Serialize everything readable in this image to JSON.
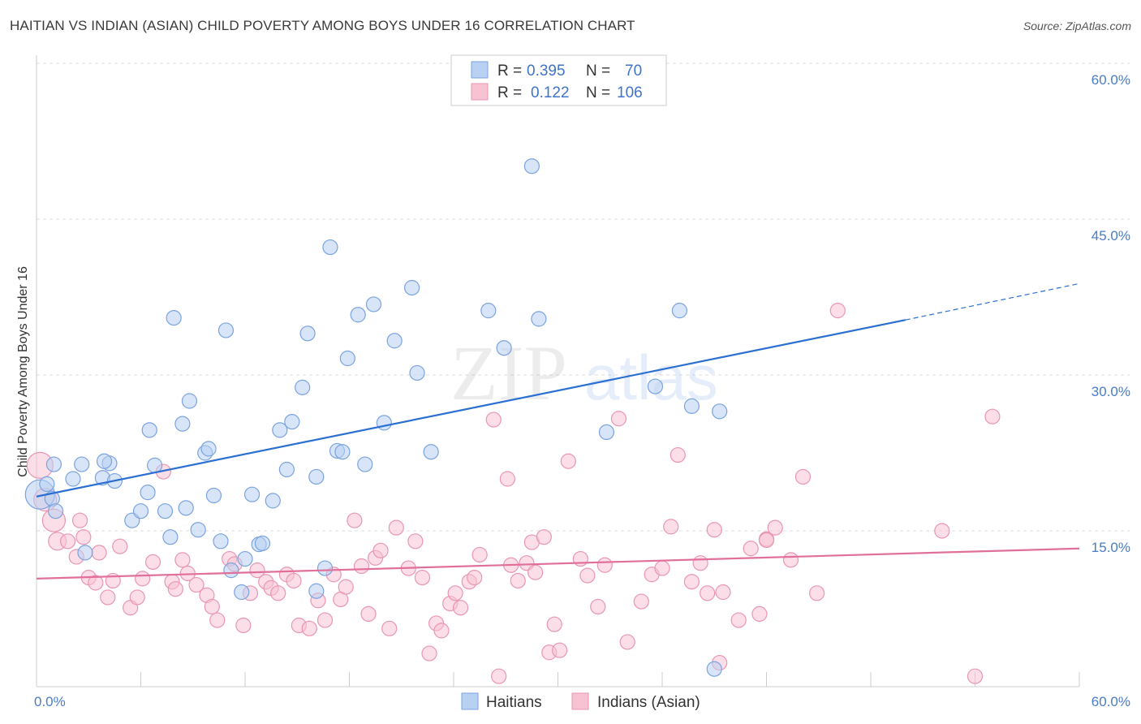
{
  "header": {
    "title": "HAITIAN VS INDIAN (ASIAN) CHILD POVERTY AMONG BOYS UNDER 16 CORRELATION CHART",
    "source": "Source: ZipAtlas.com"
  },
  "watermark": {
    "zip": "ZIP",
    "atlas": "atlas"
  },
  "legend": {
    "r_label": "R =",
    "n_label": "N =",
    "haitians": {
      "r": "0.395",
      "n": "70"
    },
    "indians": {
      "r": "0.122",
      "n": "106"
    }
  },
  "colors": {
    "haitians_fill": "#b8d0f2",
    "haitians_stroke": "#7aa3e0",
    "haitians_line": "#2a6fd1",
    "indians_fill": "#f7c3d3",
    "indians_stroke": "#e996b2",
    "indians_line": "#e0709a",
    "grid": "#dddddd",
    "tick_text": "#4a7cc7"
  },
  "chart_data": {
    "type": "scatter",
    "title": "HAITIAN VS INDIAN (ASIAN) CHILD POVERTY AMONG BOYS UNDER 16 CORRELATION CHART",
    "xlabel": "",
    "ylabel": "Child Poverty Among Boys Under 16",
    "xlim": [
      0,
      60
    ],
    "ylim": [
      0,
      60
    ],
    "x_tick_labels": [
      "0.0%",
      "60.0%"
    ],
    "y_ticks": [
      15,
      30,
      45,
      60
    ],
    "y_tick_labels": [
      "15.0%",
      "30.0%",
      "45.0%",
      "60.0%"
    ],
    "grid": "horizontal dashed",
    "legend_position": "top-center",
    "series": [
      {
        "name": "Haitians",
        "r": 0.395,
        "n": 70,
        "trend": {
          "x0": 0,
          "y0": 18.3,
          "x1": 50,
          "y1": 35.3,
          "dashed_to_x": 60,
          "dashed_to_y": 38.8
        },
        "points": [
          [
            0.2,
            18.5,
            18
          ],
          [
            0.6,
            19.5,
            9
          ],
          [
            1.0,
            21.4,
            9
          ],
          [
            0.9,
            18.1,
            9
          ],
          [
            1.1,
            16.9,
            9
          ],
          [
            2.1,
            20.0,
            9
          ],
          [
            2.6,
            21.4,
            9
          ],
          [
            2.8,
            12.9,
            9
          ],
          [
            3.8,
            20.1,
            9
          ],
          [
            4.2,
            21.5,
            9
          ],
          [
            3.9,
            21.7,
            9
          ],
          [
            4.5,
            19.8,
            9
          ],
          [
            5.5,
            16.0,
            9
          ],
          [
            6.0,
            16.9,
            9
          ],
          [
            6.4,
            18.7,
            9
          ],
          [
            6.5,
            24.7,
            9
          ],
          [
            6.8,
            21.3,
            9
          ],
          [
            7.4,
            16.9,
            9
          ],
          [
            7.7,
            14.4,
            9
          ],
          [
            7.9,
            35.5,
            9
          ],
          [
            8.4,
            25.3,
            9
          ],
          [
            8.6,
            17.2,
            9
          ],
          [
            8.8,
            27.5,
            9
          ],
          [
            9.3,
            15.1,
            9
          ],
          [
            9.7,
            22.5,
            9
          ],
          [
            9.9,
            22.9,
            9
          ],
          [
            10.2,
            18.4,
            9
          ],
          [
            10.6,
            14.0,
            9
          ],
          [
            10.9,
            34.3,
            9
          ],
          [
            11.2,
            11.2,
            9
          ],
          [
            11.8,
            9.1,
            9
          ],
          [
            12.0,
            12.3,
            9
          ],
          [
            12.4,
            18.5,
            9
          ],
          [
            12.8,
            13.7,
            9
          ],
          [
            13.0,
            13.8,
            9
          ],
          [
            13.6,
            17.9,
            9
          ],
          [
            14.0,
            24.7,
            9
          ],
          [
            14.4,
            20.9,
            9
          ],
          [
            14.7,
            25.5,
            9
          ],
          [
            15.3,
            28.8,
            9
          ],
          [
            15.6,
            34.0,
            9
          ],
          [
            16.1,
            20.2,
            9
          ],
          [
            16.1,
            9.2,
            9
          ],
          [
            16.6,
            11.4,
            9
          ],
          [
            16.9,
            42.3,
            9
          ],
          [
            17.3,
            22.7,
            9
          ],
          [
            17.6,
            22.6,
            9
          ],
          [
            17.9,
            31.6,
            9
          ],
          [
            18.5,
            35.8,
            9
          ],
          [
            18.9,
            21.4,
            9
          ],
          [
            19.4,
            36.8,
            9
          ],
          [
            20.0,
            25.4,
            9
          ],
          [
            20.6,
            33.3,
            9
          ],
          [
            21.6,
            38.4,
            9
          ],
          [
            21.9,
            30.2,
            9
          ],
          [
            22.7,
            22.6,
            9
          ],
          [
            26.0,
            36.2,
            9
          ],
          [
            26.9,
            32.6,
            9
          ],
          [
            28.5,
            50.1,
            9
          ],
          [
            28.9,
            35.4,
            9
          ],
          [
            32.8,
            24.5,
            9
          ],
          [
            35.6,
            28.9,
            9
          ],
          [
            37.0,
            36.2,
            9
          ],
          [
            37.7,
            27.0,
            9
          ],
          [
            39.3,
            26.5,
            9
          ],
          [
            39.0,
            1.7,
            9
          ]
        ]
      },
      {
        "name": "Indians (Asian)",
        "r": 0.122,
        "n": 106,
        "trend": {
          "x0": 0,
          "y0": 10.4,
          "x1": 60,
          "y1": 13.3
        },
        "points": [
          [
            0.2,
            21.3,
            16
          ],
          [
            0.5,
            18.0,
            14
          ],
          [
            1.0,
            16.0,
            14
          ],
          [
            1.2,
            14.0,
            11
          ],
          [
            1.8,
            14.0,
            9
          ],
          [
            2.3,
            12.5,
            9
          ],
          [
            2.5,
            16.0,
            9
          ],
          [
            2.7,
            14.4,
            9
          ],
          [
            3.0,
            10.5,
            9
          ],
          [
            3.4,
            10.0,
            9
          ],
          [
            3.6,
            12.9,
            9
          ],
          [
            4.1,
            8.6,
            9
          ],
          [
            4.4,
            10.2,
            9
          ],
          [
            4.8,
            13.5,
            9
          ],
          [
            5.4,
            7.6,
            9
          ],
          [
            5.8,
            8.6,
            9
          ],
          [
            6.1,
            10.4,
            9
          ],
          [
            6.7,
            12.0,
            9
          ],
          [
            7.3,
            20.7,
            9
          ],
          [
            7.8,
            10.1,
            9
          ],
          [
            8.0,
            9.4,
            9
          ],
          [
            8.4,
            12.2,
            9
          ],
          [
            8.7,
            10.9,
            9
          ],
          [
            9.2,
            9.8,
            9
          ],
          [
            9.8,
            8.8,
            9
          ],
          [
            10.1,
            7.7,
            9
          ],
          [
            10.4,
            6.4,
            9
          ],
          [
            11.1,
            12.3,
            9
          ],
          [
            11.4,
            11.8,
            9
          ],
          [
            11.9,
            5.9,
            9
          ],
          [
            12.3,
            9.0,
            9
          ],
          [
            12.7,
            11.2,
            9
          ],
          [
            13.2,
            10.1,
            9
          ],
          [
            13.5,
            9.5,
            9
          ],
          [
            13.9,
            9.0,
            9
          ],
          [
            14.4,
            10.8,
            9
          ],
          [
            14.8,
            10.2,
            9
          ],
          [
            15.1,
            5.9,
            9
          ],
          [
            15.7,
            5.6,
            9
          ],
          [
            16.2,
            8.3,
            9
          ],
          [
            16.6,
            6.4,
            9
          ],
          [
            17.1,
            10.8,
            9
          ],
          [
            17.5,
            8.4,
            9
          ],
          [
            17.8,
            9.6,
            9
          ],
          [
            18.3,
            16.0,
            9
          ],
          [
            18.7,
            11.6,
            9
          ],
          [
            19.1,
            7.0,
            9
          ],
          [
            19.5,
            12.4,
            9
          ],
          [
            19.8,
            13.1,
            9
          ],
          [
            20.3,
            5.6,
            9
          ],
          [
            20.7,
            15.3,
            9
          ],
          [
            21.4,
            11.4,
            9
          ],
          [
            21.8,
            14.0,
            9
          ],
          [
            22.2,
            10.5,
            9
          ],
          [
            22.6,
            3.2,
            9
          ],
          [
            23.0,
            6.1,
            9
          ],
          [
            23.3,
            5.4,
            9
          ],
          [
            23.8,
            8.0,
            9
          ],
          [
            24.1,
            9.0,
            9
          ],
          [
            24.4,
            7.6,
            9
          ],
          [
            24.9,
            10.1,
            9
          ],
          [
            25.2,
            10.5,
            9
          ],
          [
            25.5,
            12.7,
            9
          ],
          [
            26.3,
            25.7,
            9
          ],
          [
            26.6,
            1.0,
            9
          ],
          [
            27.1,
            20.0,
            9
          ],
          [
            27.3,
            11.7,
            9
          ],
          [
            27.7,
            10.2,
            9
          ],
          [
            28.2,
            11.9,
            9
          ],
          [
            28.5,
            13.9,
            9
          ],
          [
            28.7,
            11.0,
            9
          ],
          [
            29.2,
            14.4,
            9
          ],
          [
            29.5,
            3.3,
            9
          ],
          [
            29.8,
            6.0,
            9
          ],
          [
            30.1,
            3.5,
            9
          ],
          [
            30.6,
            21.7,
            9
          ],
          [
            31.3,
            12.3,
            9
          ],
          [
            31.7,
            10.7,
            9
          ],
          [
            32.3,
            7.7,
            9
          ],
          [
            32.7,
            11.7,
            9
          ],
          [
            33.5,
            25.8,
            9
          ],
          [
            34.0,
            4.3,
            9
          ],
          [
            34.8,
            8.2,
            9
          ],
          [
            35.4,
            10.8,
            9
          ],
          [
            36.0,
            11.4,
            9
          ],
          [
            36.5,
            15.4,
            9
          ],
          [
            36.9,
            22.3,
            9
          ],
          [
            37.7,
            10.1,
            9
          ],
          [
            38.2,
            11.9,
            9
          ],
          [
            38.6,
            9.0,
            9
          ],
          [
            39.0,
            15.1,
            9
          ],
          [
            39.5,
            9.1,
            9
          ],
          [
            40.4,
            6.4,
            9
          ],
          [
            41.1,
            13.3,
            9
          ],
          [
            41.6,
            7.0,
            9
          ],
          [
            42.0,
            14.2,
            9
          ],
          [
            42.5,
            15.3,
            9
          ],
          [
            43.4,
            12.2,
            9
          ],
          [
            44.1,
            20.2,
            9
          ],
          [
            44.9,
            9.0,
            9
          ],
          [
            46.1,
            36.2,
            9
          ],
          [
            52.1,
            15.0,
            9
          ],
          [
            54.0,
            1.0,
            9
          ],
          [
            55.0,
            26.0,
            9
          ],
          [
            39.3,
            2.3,
            9
          ],
          [
            42.0,
            14.1,
            9
          ]
        ]
      }
    ]
  },
  "bottom_legend": {
    "haitians": "Haitians",
    "indians": "Indians (Asian)"
  }
}
